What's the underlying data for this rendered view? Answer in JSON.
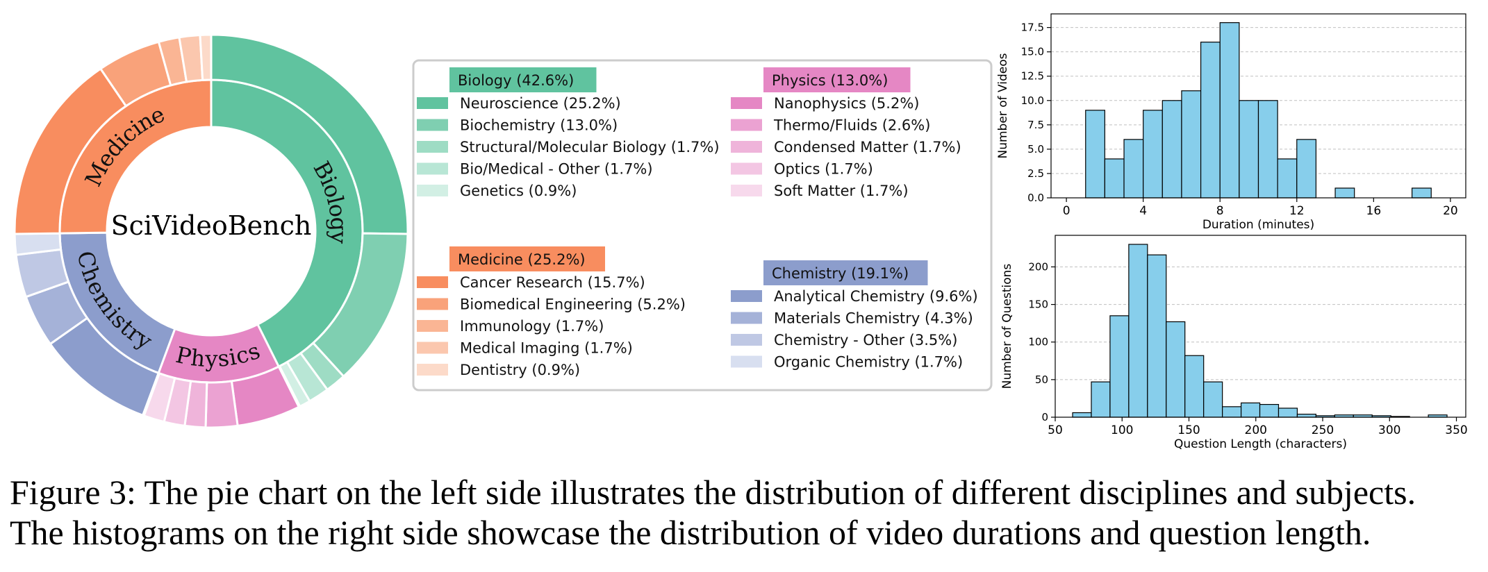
{
  "chart_data": [
    {
      "type": "pie",
      "center_label": "SciVideoBench",
      "groups": [
        {
          "name": "Biology",
          "legend_label": "Biology (42.6%)",
          "value": 42.6,
          "color": "#60c39f",
          "subjects": [
            {
              "label": "Neuroscience (25.2%)",
              "value": 25.2,
              "color": "#60c39f"
            },
            {
              "label": "Biochemistry (13.0%)",
              "value": 13.0,
              "color": "#7fcfb1"
            },
            {
              "label": "Structural/Molecular Biology (1.7%)",
              "value": 1.7,
              "color": "#9edcc4"
            },
            {
              "label": "Bio/Medical - Other (1.7%)",
              "value": 1.7,
              "color": "#b8e6d5"
            },
            {
              "label": "Genetics (0.9%)",
              "value": 0.9,
              "color": "#d2efe4"
            }
          ]
        },
        {
          "name": "Physics",
          "legend_label": "Physics (13.0%)",
          "value": 13.0,
          "color": "#e587c4",
          "subjects": [
            {
              "label": "Nanophysics (5.2%)",
              "value": 5.2,
              "color": "#e587c4"
            },
            {
              "label": "Thermo/Fluids (2.6%)",
              "value": 2.6,
              "color": "#eba2d2"
            },
            {
              "label": "Condensed Matter (1.7%)",
              "value": 1.7,
              "color": "#efb4da"
            },
            {
              "label": "Optics (1.7%)",
              "value": 1.7,
              "color": "#f3c6e3"
            },
            {
              "label": "Soft Matter (1.7%)",
              "value": 1.7,
              "color": "#f7d9ec"
            }
          ]
        },
        {
          "name": "Chemistry",
          "legend_label": "Chemistry (19.1%)",
          "value": 19.1,
          "color": "#8c9dcc",
          "subjects": [
            {
              "label": "Analytical Chemistry (9.6%)",
              "value": 9.6,
              "color": "#8c9dcc"
            },
            {
              "label": "Materials Chemistry (4.3%)",
              "value": 4.3,
              "color": "#a5b2d8"
            },
            {
              "label": "Chemistry - Other (3.5%)",
              "value": 3.5,
              "color": "#bfc8e4"
            },
            {
              "label": "Organic Chemistry (1.7%)",
              "value": 1.7,
              "color": "#d8dff0"
            }
          ]
        },
        {
          "name": "Medicine",
          "legend_label": "Medicine (25.2%)",
          "value": 25.2,
          "color": "#f88d5f",
          "subjects": [
            {
              "label": "Cancer Research (15.7%)",
              "value": 15.7,
              "color": "#f88d5f"
            },
            {
              "label": "Biomedical Engineering (5.2%)",
              "value": 5.2,
              "color": "#f9a27a"
            },
            {
              "label": "Immunology (1.7%)",
              "value": 1.7,
              "color": "#fab594"
            },
            {
              "label": "Medical Imaging (1.7%)",
              "value": 1.7,
              "color": "#fbc7ae"
            },
            {
              "label": "Dentistry (0.9%)",
              "value": 0.9,
              "color": "#fcdac9"
            }
          ]
        }
      ]
    },
    {
      "type": "bar",
      "xlabel": "Duration (minutes)",
      "ylabel": "Number of Videos",
      "xlim": [
        -0.8,
        20.8
      ],
      "ylim": [
        0,
        18.9
      ],
      "xticks": [
        0,
        4,
        8,
        12,
        16,
        20
      ],
      "yticks": [
        0.0,
        2.5,
        5.0,
        7.5,
        10.0,
        12.5,
        15.0,
        17.5
      ],
      "ytick_labels": [
        "0.0",
        "2.5",
        "5.0",
        "7.5",
        "10.0",
        "12.5",
        "15.0",
        "17.5"
      ],
      "grid": "y",
      "bar_color": "#87ceeb",
      "bins": [
        {
          "start": 1.0,
          "end": 2.0,
          "count": 9
        },
        {
          "start": 2.0,
          "end": 3.0,
          "count": 4
        },
        {
          "start": 3.0,
          "end": 4.0,
          "count": 6
        },
        {
          "start": 4.0,
          "end": 5.0,
          "count": 9
        },
        {
          "start": 5.0,
          "end": 6.0,
          "count": 10
        },
        {
          "start": 6.0,
          "end": 7.0,
          "count": 11
        },
        {
          "start": 7.0,
          "end": 8.0,
          "count": 16
        },
        {
          "start": 8.0,
          "end": 9.0,
          "count": 18
        },
        {
          "start": 9.0,
          "end": 10.0,
          "count": 10
        },
        {
          "start": 10.0,
          "end": 11.0,
          "count": 10
        },
        {
          "start": 11.0,
          "end": 12.0,
          "count": 4
        },
        {
          "start": 12.0,
          "end": 13.0,
          "count": 6
        },
        {
          "start": 14.0,
          "end": 15.0,
          "count": 1
        },
        {
          "start": 18.0,
          "end": 19.0,
          "count": 1
        }
      ]
    },
    {
      "type": "bar",
      "xlabel": "Question Length (characters)",
      "ylabel": "Number of Questions",
      "xlim": [
        50,
        357
      ],
      "ylim": [
        0,
        242
      ],
      "xticks": [
        50,
        100,
        150,
        200,
        250,
        300,
        350
      ],
      "yticks": [
        0,
        50,
        100,
        150,
        200
      ],
      "grid": "y",
      "bar_color": "#87ceeb",
      "bins": [
        {
          "start": 63,
          "end": 77,
          "count": 6
        },
        {
          "start": 77,
          "end": 91,
          "count": 47
        },
        {
          "start": 91,
          "end": 105,
          "count": 135
        },
        {
          "start": 105,
          "end": 119,
          "count": 230
        },
        {
          "start": 119,
          "end": 133,
          "count": 216
        },
        {
          "start": 133,
          "end": 147,
          "count": 127
        },
        {
          "start": 147,
          "end": 161,
          "count": 82
        },
        {
          "start": 161,
          "end": 175,
          "count": 47
        },
        {
          "start": 175,
          "end": 189,
          "count": 14
        },
        {
          "start": 189,
          "end": 203,
          "count": 19
        },
        {
          "start": 203,
          "end": 217,
          "count": 17
        },
        {
          "start": 217,
          "end": 231,
          "count": 12
        },
        {
          "start": 231,
          "end": 245,
          "count": 4
        },
        {
          "start": 245,
          "end": 259,
          "count": 2
        },
        {
          "start": 259,
          "end": 273,
          "count": 3
        },
        {
          "start": 273,
          "end": 287,
          "count": 3
        },
        {
          "start": 287,
          "end": 301,
          "count": 2
        },
        {
          "start": 301,
          "end": 315,
          "count": 1
        },
        {
          "start": 315,
          "end": 329,
          "count": 0
        },
        {
          "start": 329,
          "end": 343,
          "count": 3
        }
      ]
    }
  ],
  "caption": {
    "line1": "Figure 3: The pie chart on the left side illustrates the distribution of different disciplines and subjects.",
    "line2": "The histograms on the right side showcase the distribution of video durations and question length."
  }
}
